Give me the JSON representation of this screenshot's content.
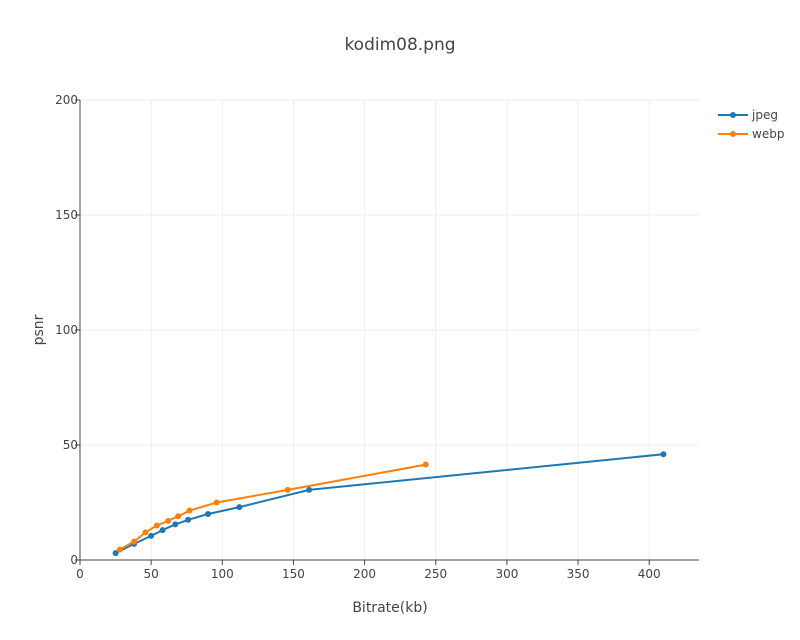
{
  "chart_data": {
    "type": "line",
    "title": "kodim08.png",
    "xlabel": "Bitrate(kb)",
    "ylabel": "psnr",
    "xlim": [
      0,
      435
    ],
    "ylim": [
      0,
      200
    ],
    "xticks": [
      0,
      50,
      100,
      150,
      200,
      250,
      300,
      350,
      400
    ],
    "yticks": [
      0,
      50,
      100,
      150,
      200
    ],
    "grid": true,
    "legend_position": "top-right",
    "series": [
      {
        "name": "jpeg",
        "color": "#1f77b4",
        "points": [
          [
            25,
            3
          ],
          [
            38,
            7
          ],
          [
            50,
            10.5
          ],
          [
            58,
            13
          ],
          [
            67,
            15.5
          ],
          [
            76,
            17.5
          ],
          [
            90,
            20
          ],
          [
            112,
            23
          ],
          [
            161,
            30.5
          ],
          [
            410,
            46
          ]
        ]
      },
      {
        "name": "webp",
        "color": "#ff7f0e",
        "points": [
          [
            28,
            4.5
          ],
          [
            38,
            8
          ],
          [
            46,
            12
          ],
          [
            54,
            15
          ],
          [
            62,
            17
          ],
          [
            69,
            19
          ],
          [
            77,
            21.5
          ],
          [
            96,
            25
          ],
          [
            146,
            30.5
          ],
          [
            243,
            41.5
          ]
        ]
      }
    ]
  }
}
